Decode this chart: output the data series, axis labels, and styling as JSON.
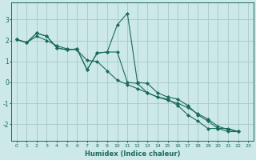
{
  "xlabel": "Humidex (Indice chaleur)",
  "background_color": "#cce8e8",
  "grid_color": "#aac8c8",
  "line_color": "#1a6b5a",
  "xlim": [
    -0.5,
    23.5
  ],
  "ylim": [
    -2.8,
    3.8
  ],
  "yticks": [
    -2,
    -1,
    0,
    1,
    2,
    3
  ],
  "xticks": [
    0,
    1,
    2,
    3,
    4,
    5,
    6,
    7,
    8,
    9,
    10,
    11,
    12,
    13,
    14,
    15,
    16,
    17,
    18,
    19,
    20,
    21,
    22,
    23
  ],
  "series1_x": [
    0,
    1,
    2,
    3,
    4,
    5,
    6,
    7,
    8,
    9,
    10,
    11,
    12,
    13,
    14,
    15,
    16,
    17,
    18,
    19,
    20,
    21,
    22
  ],
  "series1_y": [
    2.05,
    1.9,
    2.35,
    2.2,
    1.65,
    1.55,
    1.6,
    0.6,
    1.4,
    1.45,
    2.75,
    3.3,
    0.0,
    -0.05,
    -0.5,
    -0.7,
    -0.8,
    -1.1,
    -1.55,
    -1.85,
    -2.2,
    -2.2,
    -2.35
  ],
  "series2_x": [
    0,
    1,
    2,
    3,
    4,
    5,
    6,
    7,
    8,
    9,
    10,
    11,
    12,
    13,
    14,
    15,
    16,
    17,
    18,
    19,
    20,
    21,
    22
  ],
  "series2_y": [
    2.05,
    1.9,
    2.35,
    2.2,
    1.65,
    1.55,
    1.6,
    0.6,
    1.4,
    1.45,
    1.45,
    0.0,
    -0.05,
    -0.5,
    -0.7,
    -0.8,
    -1.1,
    -1.55,
    -1.85,
    -2.2,
    -2.2,
    -2.35,
    -2.35
  ],
  "series3_x": [
    0,
    1,
    2,
    3,
    4,
    5,
    6,
    7,
    8,
    9,
    10,
    11,
    12,
    13,
    14,
    15,
    16,
    17,
    18,
    19,
    20,
    21,
    22
  ],
  "series3_y": [
    2.05,
    1.9,
    2.2,
    2.0,
    1.75,
    1.6,
    1.55,
    1.05,
    1.0,
    0.55,
    0.1,
    -0.1,
    -0.3,
    -0.5,
    -0.7,
    -0.85,
    -1.0,
    -1.2,
    -1.5,
    -1.75,
    -2.1,
    -2.25,
    -2.35
  ]
}
